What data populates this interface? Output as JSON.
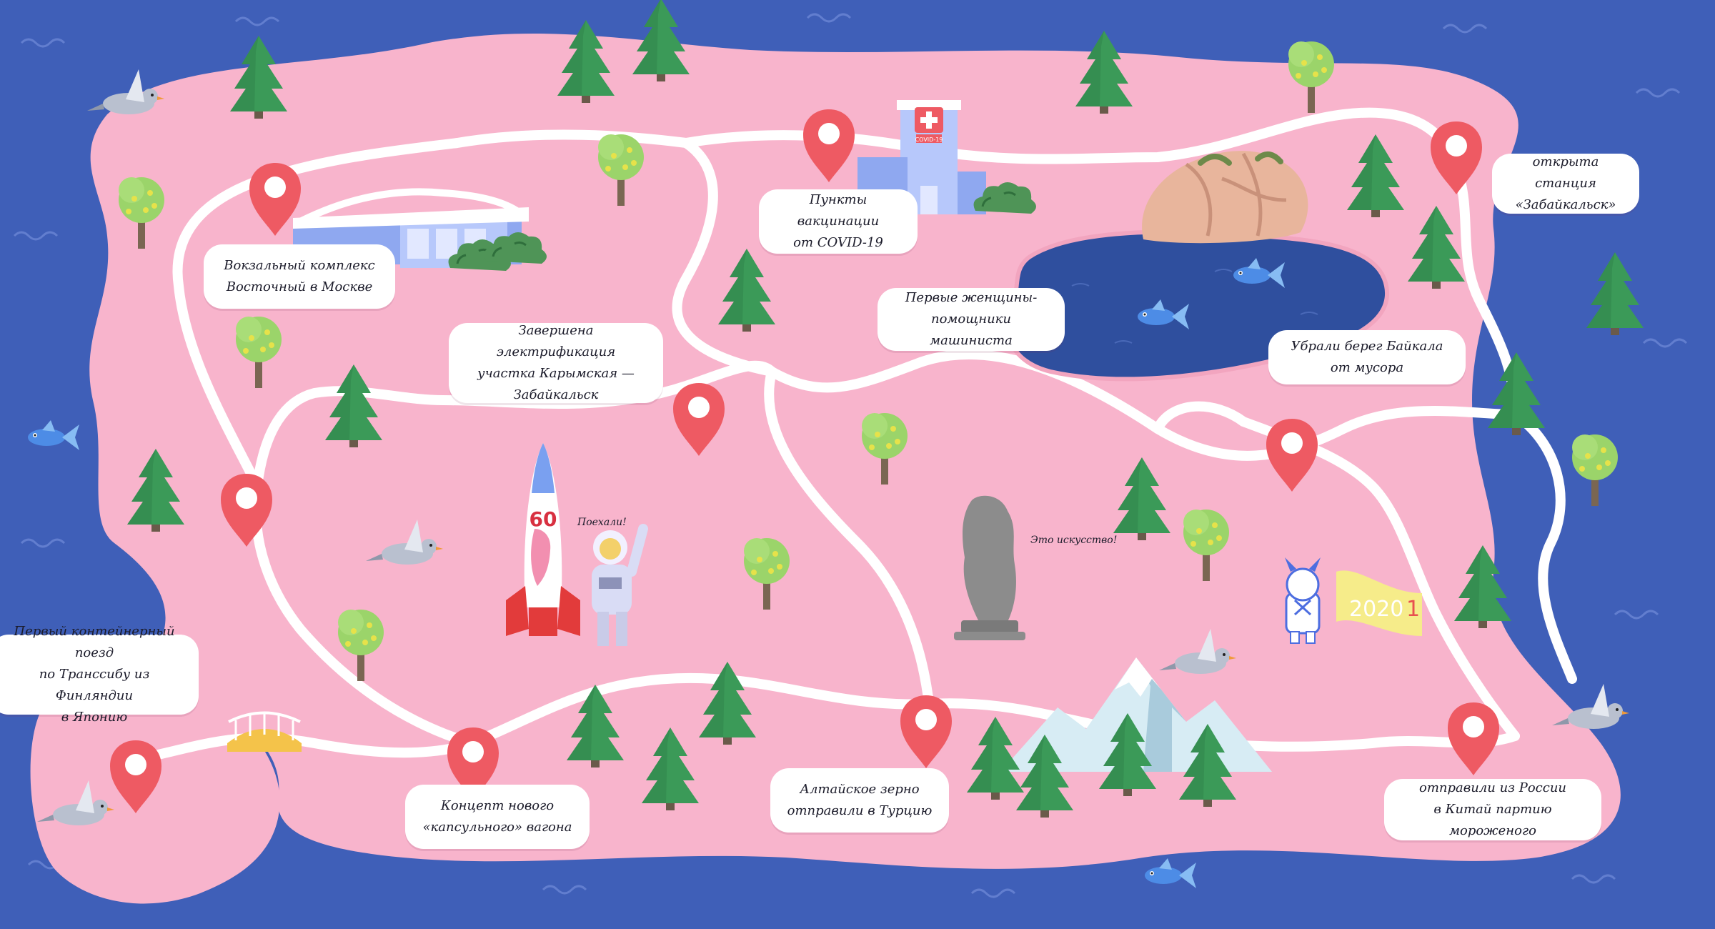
{
  "map": {
    "colors": {
      "water": "#3f5fb8",
      "land": "#f8b4cc",
      "road": "#ffffff",
      "pin": "#ee5a63",
      "tree_dark": "#3b9a58",
      "tree_light": "#9bd46a",
      "lake": "#2f4f9e",
      "building": "#8fa8f0"
    },
    "icons": [
      "location-pin-icon",
      "pine-tree-icon",
      "fruit-tree-icon",
      "pigeon-icon",
      "fish-icon",
      "station-building-icon",
      "hospital-icon",
      "rock-icon",
      "mountain-icon",
      "rocket-icon",
      "astronaut-icon",
      "statue-icon",
      "mascot-icon",
      "bridge-icon"
    ],
    "labels": {
      "station_moscow": "Вокзальный комплекс\nВосточный в Москве",
      "vaccination": "Пункты вакцинации\nот COVID-19",
      "electrification": "Завершена электрификация\nучастка Карымская —\nЗабайкальск",
      "women_drivers": "Первые женщины-\nпомощники машиниста",
      "baikal": "Убрали берег Байкала\nот мусора",
      "zabaikalsk": "открыта станция\n«Забайкальск»",
      "container_train": "Первый контейнерный поезд\nпо Транссибу из Финляндии\nв Японию",
      "capsule_wagon": "Концепт нового\n«капсульного» вагона",
      "altai_grain": "Алтайское зерно\nотправили в Турцию",
      "ice_cream": "отправили из России\nв Китай партию мороженого"
    },
    "speech": {
      "astronaut": "Поехали!",
      "statue": "Это искусство!"
    },
    "signs": {
      "rocket_number": "60",
      "hospital_badge": "COVID-19",
      "banner_year": "2020",
      "banner_year_next": "1"
    }
  }
}
